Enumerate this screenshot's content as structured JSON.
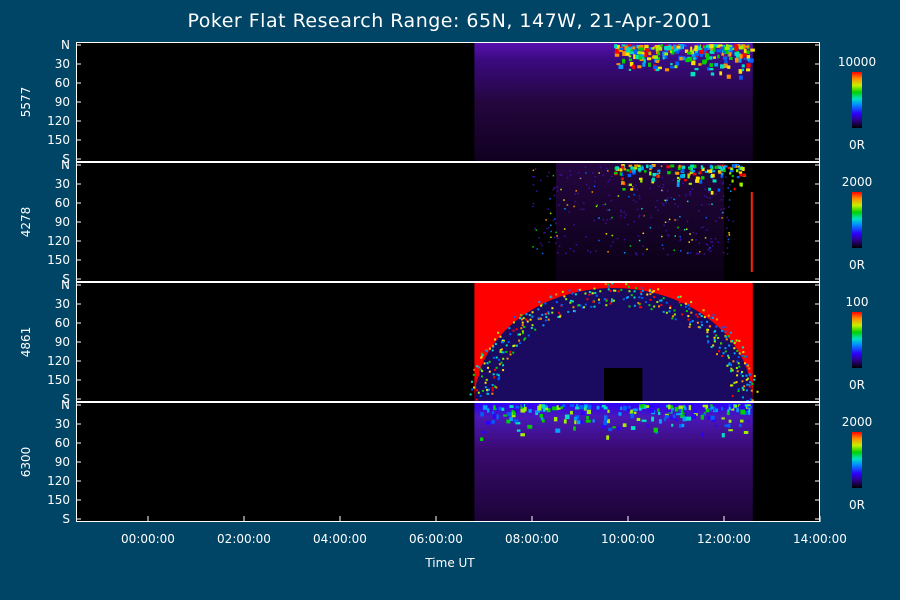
{
  "chart_data": {
    "type": "heatmap",
    "title": "Poker Flat Research Range: 65N, 147W, 21-Apr-2001",
    "xlabel": "Time UT",
    "x_ticks": [
      "00:00:00",
      "02:00:00",
      "04:00:00",
      "06:00:00",
      "08:00:00",
      "10:00:00",
      "12:00:00",
      "14:00:00"
    ],
    "x_range_hours": [
      -1.5,
      14.0
    ],
    "y_tick_labels": [
      "N",
      "30",
      "60",
      "90",
      "120",
      "150",
      "S"
    ],
    "y_range_deg": [
      0,
      180
    ],
    "data_start_hours": 6.8,
    "data_end_hours": 12.6,
    "panels": [
      {
        "wavelength": "5577",
        "cbar_max": "10000",
        "cbar_min": "0R"
      },
      {
        "wavelength": "4278",
        "cbar_max": "2000",
        "cbar_min": "0R"
      },
      {
        "wavelength": "4861",
        "cbar_max": "100",
        "cbar_min": "0R"
      },
      {
        "wavelength": "6300",
        "cbar_max": "2000",
        "cbar_min": "0R"
      }
    ]
  }
}
